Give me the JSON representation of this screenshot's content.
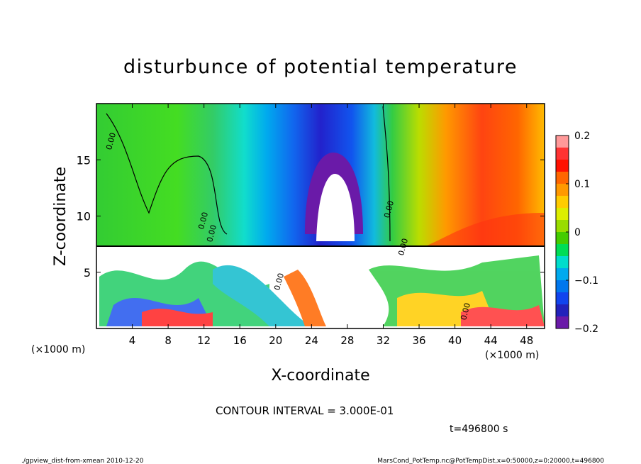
{
  "chart_data": {
    "type": "heatmap",
    "title": "disturbunce of potential temperature",
    "xlabel": "X-coordinate",
    "ylabel": "Z-coordinate",
    "x_unit": "(×1000 m)",
    "y_unit": "(×1000 m)",
    "x_ticks": [
      "4",
      "8",
      "12",
      "16",
      "20",
      "24",
      "28",
      "32",
      "36",
      "40",
      "44",
      "48"
    ],
    "y_ticks": [
      "5",
      "10",
      "15"
    ],
    "xlim": [
      0,
      50
    ],
    "ylim": [
      0,
      20
    ],
    "colorbar": {
      "ticks": [
        "0.2",
        "0.1",
        "0",
        "−0.1",
        "−0.2"
      ],
      "range": [
        -0.2,
        0.2
      ]
    },
    "contour_labels": [
      "0.00",
      "0.00",
      "0.00",
      "0.00",
      "0.00",
      "0.00",
      "0.00"
    ],
    "contour_interval": "CONTOUR INTERVAL = 3.000E-01",
    "time": "t=496800 s",
    "footer_left": "./gpview_dist-from-xmean  2010-12-20",
    "footer_right": "MarsCond_PotTemp.nc@PotTempDist,x=0:50000,z=0:20000,t=496800"
  }
}
